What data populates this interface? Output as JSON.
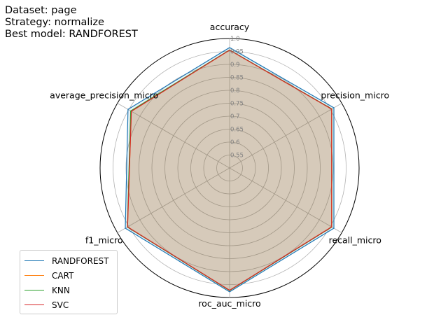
{
  "header": {
    "lines": [
      "Dataset: page",
      "Strategy: normalize",
      "Best model: RANDFOREST"
    ]
  },
  "chart_data": {
    "type": "radar",
    "axes": [
      "accuracy",
      "precision_micro",
      "recall_micro",
      "roc_auc_micro",
      "f1_micro",
      "average_precision_micro"
    ],
    "rlim": [
      0.5,
      1.0
    ],
    "rticks": [
      "0.55",
      "0.6",
      "0.65",
      "0.7",
      "0.75",
      "0.8",
      "0.85",
      "0.9",
      "0.95",
      "1.0"
    ],
    "grid": true,
    "legend_position": "lower-left",
    "series": [
      {
        "name": "RANDFOREST",
        "color": "#1f77b4",
        "values": [
          0.965,
          0.965,
          0.965,
          0.978,
          0.965,
          0.953
        ]
      },
      {
        "name": "CART",
        "color": "#ff7f0e",
        "values": [
          0.955,
          0.955,
          0.955,
          0.973,
          0.955,
          0.938
        ]
      },
      {
        "name": "KNN",
        "color": "#2ca02c",
        "values": [
          0.956,
          0.956,
          0.956,
          0.973,
          0.956,
          0.941
        ]
      },
      {
        "name": "SVC",
        "color": "#d62728",
        "values": [
          0.955,
          0.955,
          0.955,
          0.972,
          0.955,
          0.938
        ]
      }
    ]
  }
}
